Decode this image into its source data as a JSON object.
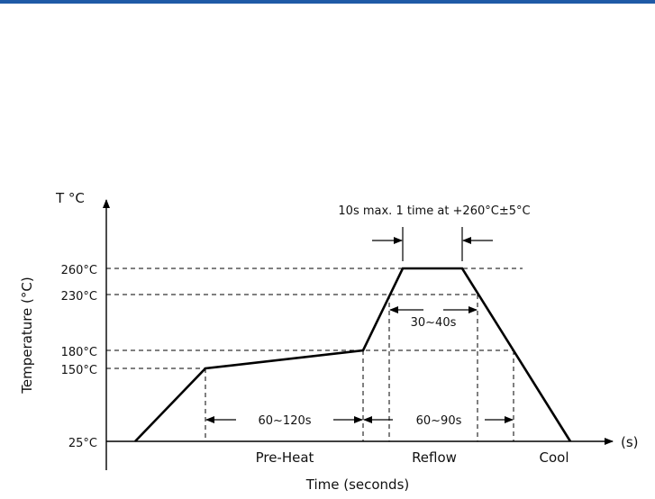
{
  "header": {
    "rule_color": "#1f5aa6"
  },
  "diagram": {
    "y_axis_top_label": "T °C",
    "y_axis_title": "Temperature (°C)",
    "x_axis_end_label": "(s)",
    "x_axis_title": "Time (seconds)",
    "temperature_labels": [
      "260°C",
      "230°C",
      "180°C",
      "150°C",
      "25°C"
    ],
    "peak_note": "10s max. 1 time at +260°C±5°C",
    "interval_preheat": "60~120s",
    "interval_reflow_total": "60~90s",
    "interval_above_230": "30~40s",
    "phase_labels": [
      "Pre-Heat",
      "Reflow",
      "Cool"
    ],
    "line_color": "#000000"
  }
}
